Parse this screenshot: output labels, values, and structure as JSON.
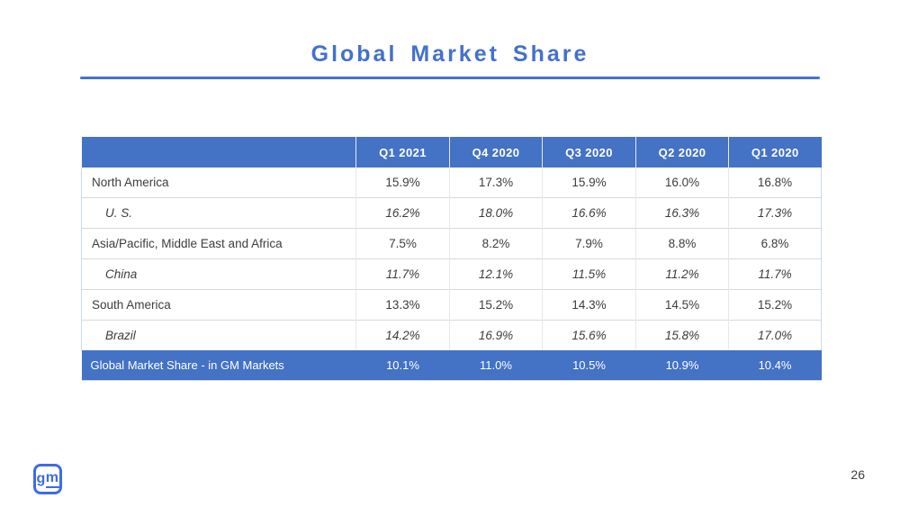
{
  "slide": {
    "title": "Global Market Share",
    "page_number": "26",
    "logo_text": "gm"
  },
  "colors": {
    "title_blue": "#4471C9",
    "table_header_blue": "#4472C4",
    "total_row_blue": "#4472C4",
    "logo_blue": "#3F6CE4",
    "body_text": "#3D3D3D",
    "row_divider": "#D9D9D9",
    "table_edge_light_blue": "#CBD9F1",
    "header_text": "#FFFFFF"
  },
  "chart_data": {
    "type": "table",
    "title": "Global Market Share",
    "columns": [
      "",
      "Q1 2021",
      "Q4 2020",
      "Q3 2020",
      "Q2 2020",
      "Q1 2020"
    ],
    "rows": [
      {
        "label": "North America",
        "style": "region",
        "values": [
          "15.9%",
          "17.3%",
          "15.9%",
          "16.0%",
          "16.8%"
        ]
      },
      {
        "label": "U. S.",
        "style": "sub",
        "values": [
          "16.2%",
          "18.0%",
          "16.6%",
          "16.3%",
          "17.3%"
        ]
      },
      {
        "label": "Asia/Pacific, Middle East and Africa",
        "style": "region",
        "values": [
          "7.5%",
          "8.2%",
          "7.9%",
          "8.8%",
          "6.8%"
        ]
      },
      {
        "label": "China",
        "style": "sub",
        "values": [
          "11.7%",
          "12.1%",
          "11.5%",
          "11.2%",
          "11.7%"
        ]
      },
      {
        "label": "South America",
        "style": "region",
        "values": [
          "13.3%",
          "15.2%",
          "14.3%",
          "14.5%",
          "15.2%"
        ]
      },
      {
        "label": "Brazil",
        "style": "sub",
        "values": [
          "14.2%",
          "16.9%",
          "15.6%",
          "15.8%",
          "17.0%"
        ]
      },
      {
        "label": "Global Market Share - in GM Markets",
        "style": "total",
        "values": [
          "10.1%",
          "11.0%",
          "10.5%",
          "10.9%",
          "10.4%"
        ]
      }
    ]
  }
}
